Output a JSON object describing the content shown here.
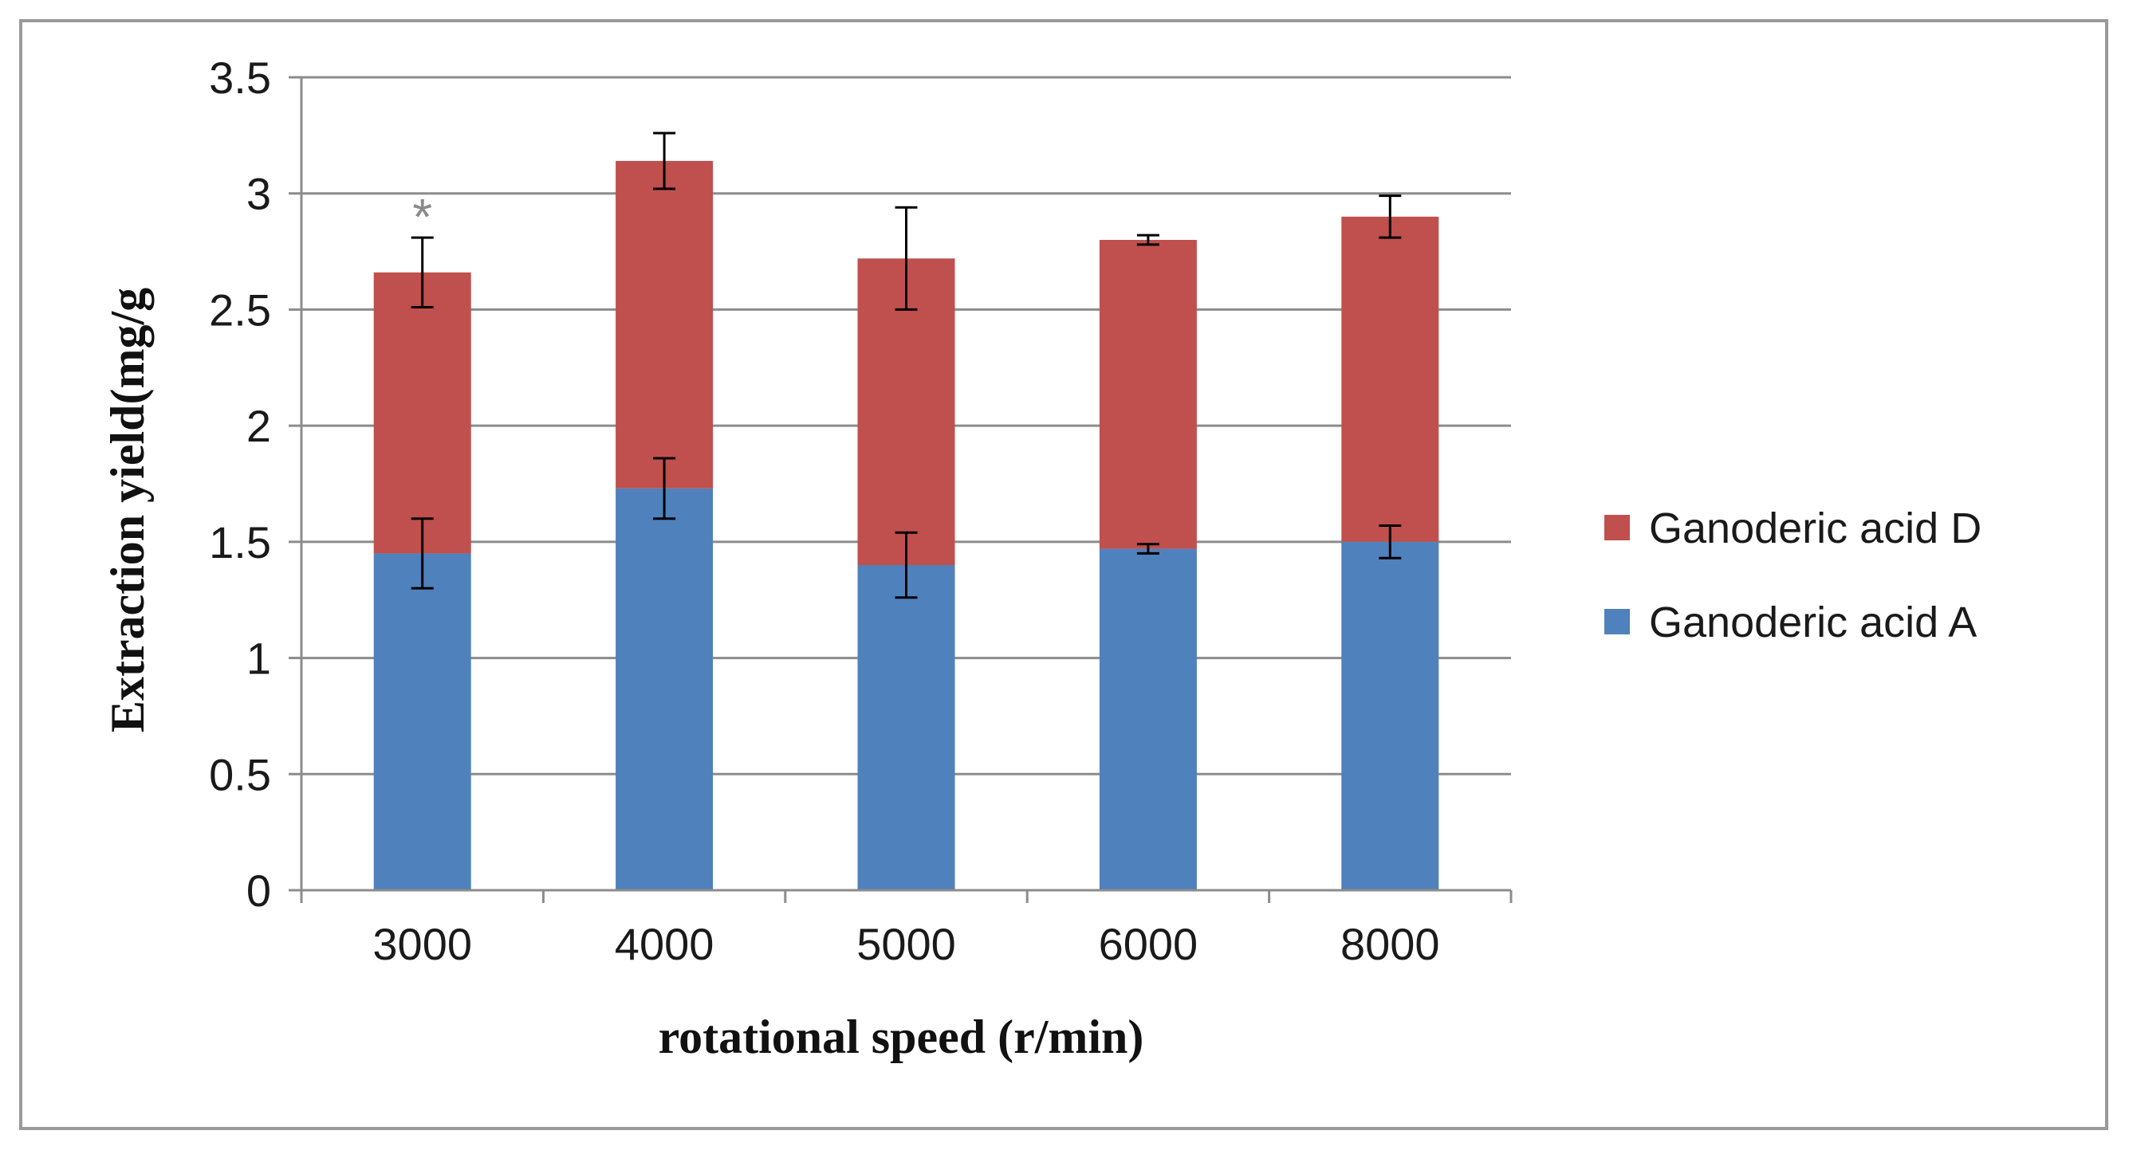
{
  "chart_data": {
    "type": "bar",
    "stacked": true,
    "title": "",
    "xlabel": "rotational speed (r/min)",
    "ylabel": "Extraction yield(mg/g",
    "categories": [
      "3000",
      "4000",
      "5000",
      "6000",
      "8000"
    ],
    "ylim": [
      0,
      3.5
    ],
    "yticks": [
      "0",
      "0.5",
      "1",
      "1.5",
      "2",
      "2.5",
      "3",
      "3.5"
    ],
    "grid": true,
    "legend_position": "right",
    "annotations": [
      {
        "category": "3000",
        "text": "*"
      }
    ],
    "series": [
      {
        "name": "Ganoderic acid A",
        "color": "#4f81bd",
        "values": [
          1.45,
          1.73,
          1.4,
          1.47,
          1.5
        ],
        "errors": [
          0.15,
          0.13,
          0.14,
          0.02,
          0.07
        ]
      },
      {
        "name": "Ganoderic acid D",
        "color": "#c0504d",
        "values": [
          1.21,
          1.41,
          1.32,
          1.33,
          1.4
        ],
        "errors": [
          0.15,
          0.12,
          0.22,
          0.02,
          0.09
        ]
      }
    ],
    "legend_order": [
      "Ganoderic acid D",
      "Ganoderic acid A"
    ]
  }
}
